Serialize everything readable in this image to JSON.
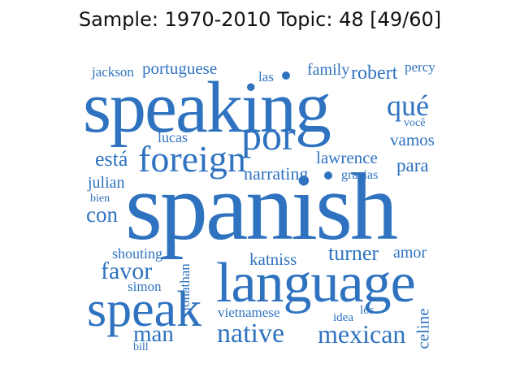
{
  "title": "Sample: 1970-2010 Topic: 48 [49/60]",
  "word_color": "#2f73c0",
  "words": {
    "speaking": "speaking",
    "spanish": "spanish",
    "language": "language",
    "speak": "speak",
    "foreign": "foreign",
    "por": "por",
    "native": "native",
    "mexican": "mexican",
    "que": "qué",
    "esta": "está",
    "man": "man",
    "favor": "favor",
    "con": "con",
    "turner": "turner",
    "katniss": "katniss",
    "narrating": "narrating",
    "lawrence": "lawrence",
    "robert": "robert",
    "family": "family",
    "portuguese": "portuguese",
    "jackson": "jackson",
    "las": "las",
    "percy": "percy",
    "voce": "você",
    "vamos": "vamos",
    "para": "para",
    "gracias": "gracias",
    "lucas": "lucas",
    "julian": "julian",
    "bien": "bien",
    "shouting": "shouting",
    "simon": "simon",
    "jonathan": "jonathan",
    "amor": "amor",
    "vietnamese": "vietnamese",
    "idea": "idea",
    "los": "los",
    "celine": "celine",
    "bill": "bill"
  }
}
